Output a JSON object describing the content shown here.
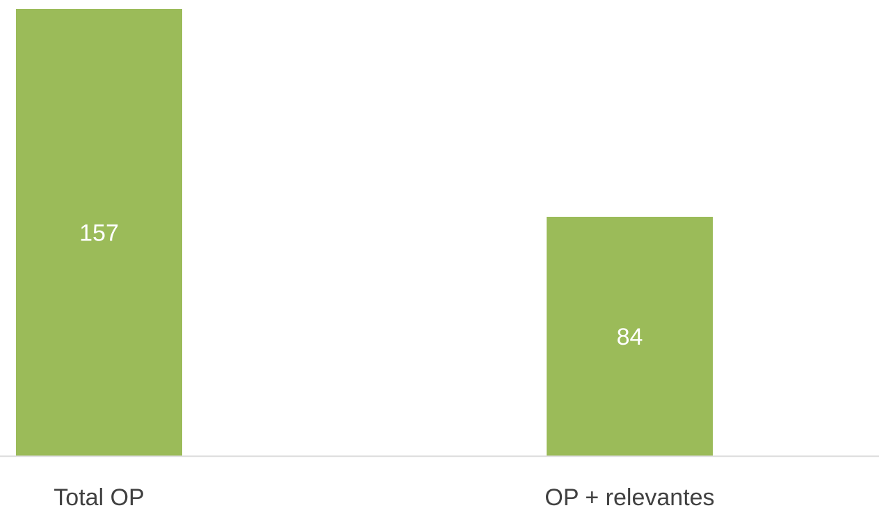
{
  "chart_data": {
    "type": "bar",
    "categories": [
      "Total OP",
      "OP + relevantes"
    ],
    "values": [
      157,
      84
    ],
    "data_labels": [
      "157",
      "84"
    ],
    "title": "",
    "xlabel": "",
    "ylabel": "",
    "ylim": [
      0,
      157
    ],
    "grid": false,
    "legend": "none",
    "colors": {
      "bar": "#9BBB59",
      "axis_line": "#D9D9D9",
      "data_label_text": "#FFFFFF",
      "category_text": "#404040"
    }
  }
}
